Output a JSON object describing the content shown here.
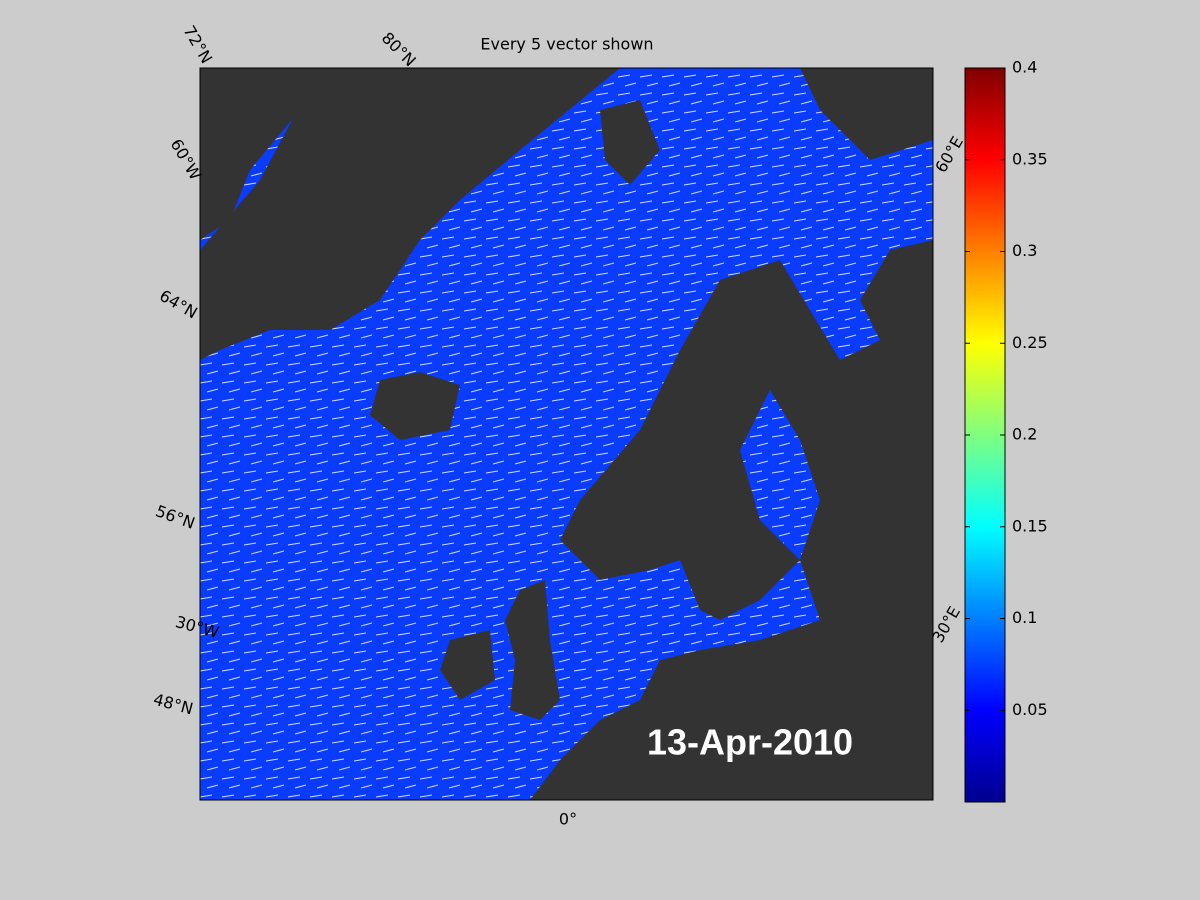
{
  "title": "Every 5 vector shown",
  "date_label": "13-Apr-2010",
  "graticule_labels": [
    "72°N",
    "80°N",
    "60°W",
    "64°N",
    "56°N",
    "30°W",
    "48°N",
    "0°",
    "60°E",
    "30°E"
  ],
  "colorbar": {
    "colormap": "jet",
    "lim": [
      0,
      0.4
    ],
    "ticks": [
      0.05,
      0.1,
      0.15,
      0.2,
      0.25,
      0.3,
      0.35,
      0.4
    ]
  }
}
